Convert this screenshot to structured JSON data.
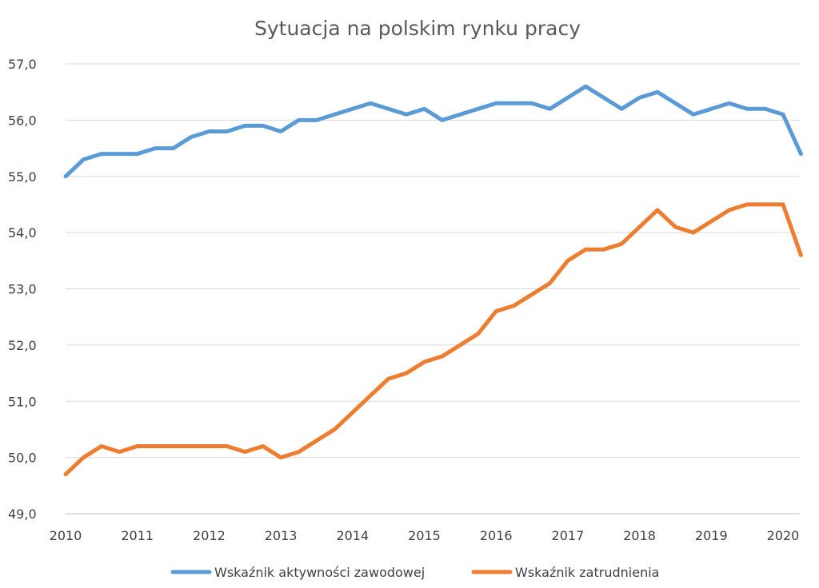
{
  "chart_data": {
    "type": "line",
    "title": "Sytuacja na polskim rynku pracy",
    "xlabel": "",
    "ylabel": "",
    "ylim": [
      49.0,
      57.0
    ],
    "yticks": [
      "49,0",
      "50,0",
      "51,0",
      "52,0",
      "53,0",
      "54,0",
      "55,0",
      "56,0",
      "57,0"
    ],
    "xticks": [
      "2010",
      "2011",
      "2012",
      "2013",
      "2014",
      "2015",
      "2016",
      "2017",
      "2018",
      "2019",
      "2020"
    ],
    "x_note": "quarterly observations, 2010 Q1 to 2020 Q2",
    "x": [
      "2010 Q1",
      "2010 Q2",
      "2010 Q3",
      "2010 Q4",
      "2011 Q1",
      "2011 Q2",
      "2011 Q3",
      "2011 Q4",
      "2012 Q1",
      "2012 Q2",
      "2012 Q3",
      "2012 Q4",
      "2013 Q1",
      "2013 Q2",
      "2013 Q3",
      "2013 Q4",
      "2014 Q1",
      "2014 Q2",
      "2014 Q3",
      "2014 Q4",
      "2015 Q1",
      "2015 Q2",
      "2015 Q3",
      "2015 Q4",
      "2016 Q1",
      "2016 Q2",
      "2016 Q3",
      "2016 Q4",
      "2017 Q1",
      "2017 Q2",
      "2017 Q3",
      "2017 Q4",
      "2018 Q1",
      "2018 Q2",
      "2018 Q3",
      "2018 Q4",
      "2019 Q1",
      "2019 Q2",
      "2019 Q3",
      "2019 Q4",
      "2020 Q1",
      "2020 Q2"
    ],
    "grid": true,
    "legend_position": "bottom",
    "series": [
      {
        "name": "Wskaźnik aktywności zawodowej",
        "color": "#5b9bd5",
        "values": [
          55.0,
          55.3,
          55.4,
          55.4,
          55.4,
          55.5,
          55.5,
          55.7,
          55.8,
          55.8,
          55.9,
          55.9,
          55.8,
          56.0,
          56.0,
          56.1,
          56.2,
          56.3,
          56.2,
          56.1,
          56.2,
          56.0,
          56.1,
          56.2,
          56.3,
          56.3,
          56.3,
          56.2,
          56.4,
          56.6,
          56.4,
          56.2,
          56.4,
          56.5,
          56.3,
          56.1,
          56.2,
          56.3,
          56.2,
          56.2,
          56.1,
          55.4
        ]
      },
      {
        "name": "Wskaźnik zatrudnienia",
        "color": "#ed7d31",
        "values": [
          49.7,
          50.0,
          50.2,
          50.1,
          50.2,
          50.2,
          50.2,
          50.2,
          50.2,
          50.2,
          50.1,
          50.2,
          50.0,
          50.1,
          50.3,
          50.5,
          50.8,
          51.1,
          51.4,
          51.5,
          51.7,
          51.8,
          52.0,
          52.2,
          52.6,
          52.7,
          52.9,
          53.1,
          53.5,
          53.7,
          53.7,
          53.8,
          54.1,
          54.4,
          54.1,
          54.0,
          54.2,
          54.4,
          54.5,
          54.5,
          54.5,
          53.6
        ]
      }
    ]
  }
}
